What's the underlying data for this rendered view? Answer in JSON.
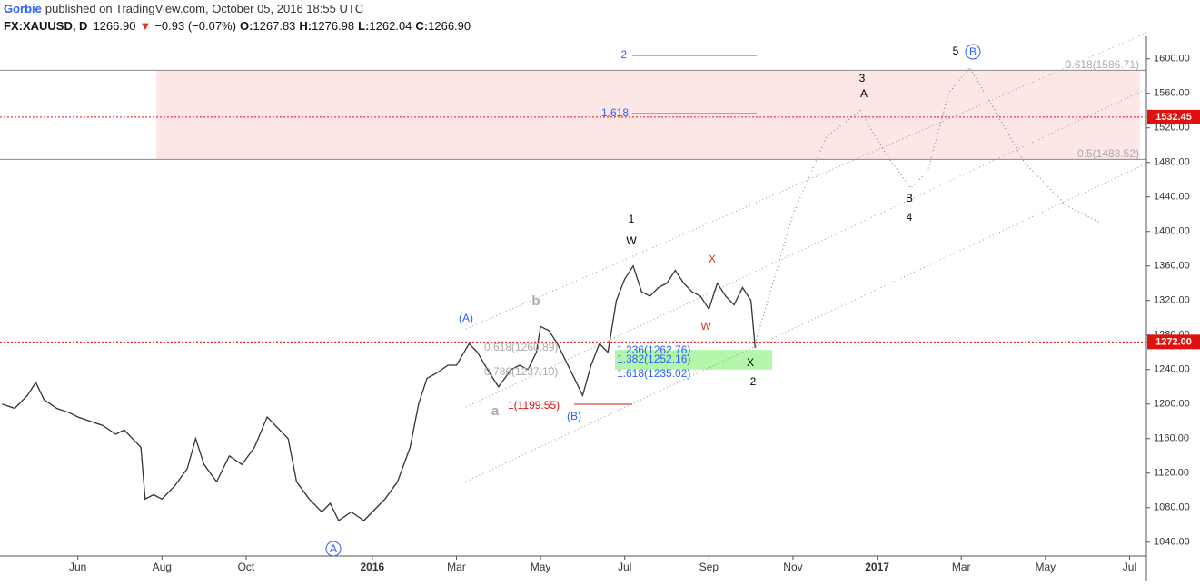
{
  "header": {
    "author": "Gorbie",
    "published": "published on TradingView.com, October 05, 2016 18:55 UTC",
    "symbol": "FX:XAUUSD, D",
    "last": "1266.90",
    "arrow": "▼",
    "change": "−0.93 (−0.07%)",
    "o_label": "O:",
    "o": "1267.83",
    "h_label": "H:",
    "h": "1276.98",
    "l_label": "L:",
    "l": "1262.04",
    "c_label": "C:",
    "c": "1266.90"
  },
  "chart_data": {
    "type": "line",
    "xlim": [
      3.15,
      30.4
    ],
    "xticks": [
      {
        "value": 5,
        "label": "Jun"
      },
      {
        "value": 7,
        "label": "Aug"
      },
      {
        "value": 9,
        "label": "Oct"
      },
      {
        "value": 12,
        "label": "2016"
      },
      {
        "value": 14,
        "label": "Mar"
      },
      {
        "value": 16,
        "label": "May"
      },
      {
        "value": 18,
        "label": "Jul"
      },
      {
        "value": 20,
        "label": "Sep"
      },
      {
        "value": 22,
        "label": "Nov"
      },
      {
        "value": 24,
        "label": "2017"
      },
      {
        "value": 26,
        "label": "Mar"
      },
      {
        "value": 28,
        "label": "May"
      },
      {
        "value": 30,
        "label": "Jul"
      }
    ],
    "ylim": [
      1024,
      1626
    ],
    "yticks": [
      {
        "value": 1040,
        "label": "1040.00"
      },
      {
        "value": 1080,
        "label": "1080.00"
      },
      {
        "value": 1120,
        "label": "1120.00"
      },
      {
        "value": 1160,
        "label": "1160.00"
      },
      {
        "value": 1200,
        "label": "1200.00"
      },
      {
        "value": 1240,
        "label": "1240.00"
      },
      {
        "value": 1280,
        "label": "1280.00"
      },
      {
        "value": 1320,
        "label": "1320.00"
      },
      {
        "value": 1360,
        "label": "1360.00"
      },
      {
        "value": 1400,
        "label": "1400.00"
      },
      {
        "value": 1440,
        "label": "1440.00"
      },
      {
        "value": 1480,
        "label": "1480.00"
      },
      {
        "value": 1520,
        "label": "1520.00"
      },
      {
        "value": 1560,
        "label": "1560.00"
      },
      {
        "value": 1600,
        "label": "1600.00"
      }
    ],
    "series": [
      {
        "color": "#333333",
        "style": "solid",
        "x": [
          3.2,
          3.5,
          3.8,
          4.0,
          4.2,
          4.5,
          4.8,
          5.0,
          5.3,
          5.6,
          5.9,
          6.1,
          6.3,
          6.5,
          6.6,
          6.8,
          7.0,
          7.3,
          7.6,
          7.8,
          8.0,
          8.3,
          8.6,
          8.9,
          9.2,
          9.5,
          9.7,
          10.0,
          10.2,
          10.5,
          10.8,
          11.0,
          11.2,
          11.5,
          11.8,
          12.0,
          12.3,
          12.6,
          12.9,
          13.1,
          13.3,
          13.5,
          13.8,
          14.0,
          14.3,
          14.5,
          14.8,
          15.0,
          15.3,
          15.5,
          15.7,
          15.9,
          16.0,
          16.2,
          16.4,
          16.6,
          16.8,
          17.0,
          17.2,
          17.4,
          17.6,
          17.8,
          18.0,
          18.2,
          18.4,
          18.6,
          18.8,
          19.0,
          19.2,
          19.4,
          19.6,
          19.8,
          20.0,
          20.2,
          20.4,
          20.6,
          20.8,
          21.0,
          21.1
        ],
        "values": [
          1200,
          1195,
          1210,
          1225,
          1205,
          1195,
          1190,
          1185,
          1180,
          1175,
          1165,
          1170,
          1160,
          1150,
          1090,
          1095,
          1090,
          1105,
          1125,
          1160,
          1130,
          1110,
          1140,
          1130,
          1150,
          1185,
          1175,
          1160,
          1110,
          1090,
          1075,
          1085,
          1065,
          1075,
          1065,
          1075,
          1090,
          1110,
          1150,
          1200,
          1230,
          1235,
          1245,
          1245,
          1270,
          1260,
          1235,
          1220,
          1240,
          1245,
          1240,
          1260,
          1290,
          1285,
          1270,
          1250,
          1230,
          1210,
          1245,
          1270,
          1260,
          1320,
          1345,
          1360,
          1330,
          1325,
          1335,
          1340,
          1355,
          1340,
          1330,
          1325,
          1310,
          1340,
          1325,
          1315,
          1335,
          1320,
          1265
        ]
      },
      {
        "color": "#888888",
        "style": "dotted",
        "x": [
          21.1,
          22.0,
          22.8,
          23.6,
          24.2,
          24.8,
          25.2,
          25.7,
          26.2,
          26.8,
          27.5,
          28.5,
          29.3
        ],
        "values": [
          1270,
          1420,
          1510,
          1540,
          1490,
          1450,
          1470,
          1560,
          1590,
          1540,
          1480,
          1430,
          1410
        ]
      }
    ],
    "zones": [
      {
        "from": 1483.52,
        "to": 1586.71,
        "color": "#fde2e2"
      },
      {
        "from": 1240,
        "to": 1262.76,
        "color": "#a6f59a"
      }
    ],
    "price_lines": [
      {
        "value": 1532.45,
        "label": "1532.45",
        "color": "#e01010"
      },
      {
        "value": 1272,
        "label": "1272.00",
        "color": "#e01010"
      }
    ],
    "annotations": [
      "1",
      "W",
      "3",
      "A",
      "5",
      "B",
      "X",
      "W",
      "B",
      "4",
      "b",
      "a",
      "(A)",
      "(B)",
      "A",
      "X",
      "2",
      "2",
      "1.618",
      "1.236(1262.76)",
      "1.382(1252.16)",
      "1.618(1235.02)",
      "0.618(1260.89)",
      "0.786(1237.10)",
      "1(1199.55)",
      "0.618(1586.71)",
      "0.5(1483.52)"
    ]
  }
}
